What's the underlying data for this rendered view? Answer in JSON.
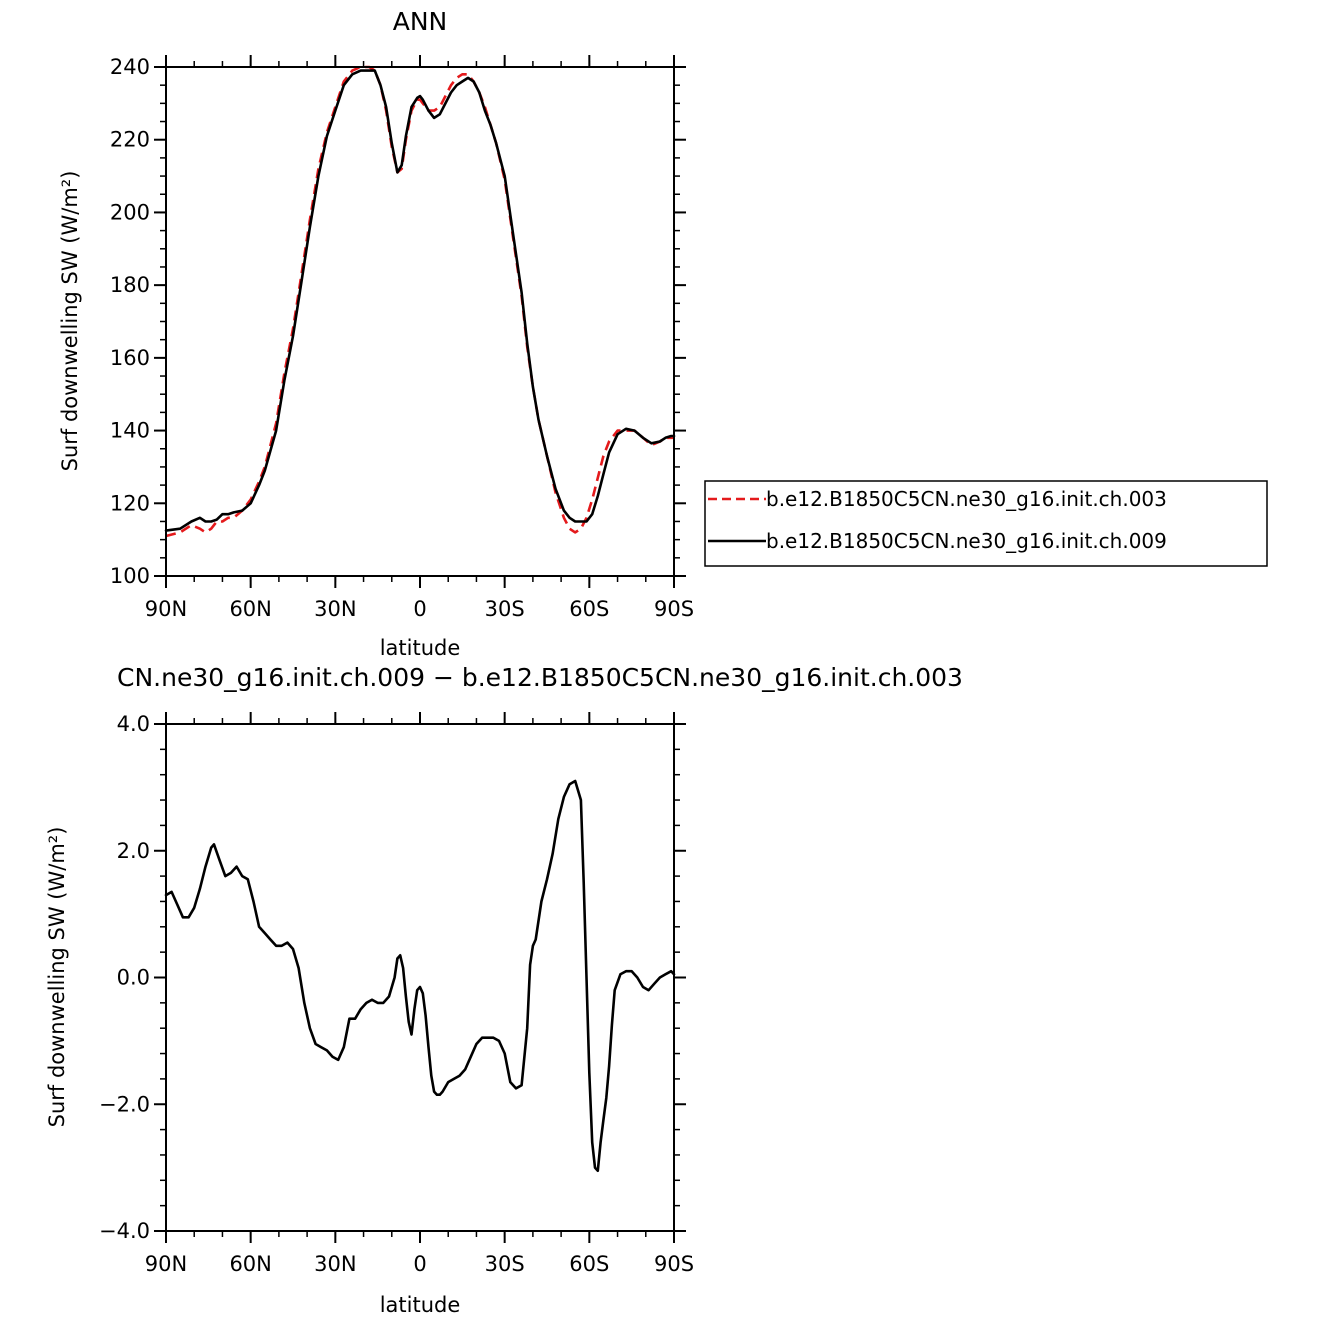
{
  "chart_data": [
    {
      "type": "line",
      "title": "ANN",
      "xlabel": "latitude",
      "ylabel": "Surf downwelling SW (W/m²)",
      "ylim": [
        100,
        240
      ],
      "y_ticks": [
        100,
        120,
        140,
        160,
        180,
        200,
        220,
        240
      ],
      "y_tick_labels": [
        "100",
        "120",
        "140",
        "160",
        "180",
        "200",
        "220",
        "240"
      ],
      "xlim": [
        90,
        -90
      ],
      "x_ticks": [
        90,
        60,
        30,
        0,
        -30,
        -60,
        -90
      ],
      "x_tick_labels": [
        "90N",
        "60N",
        "30N",
        "0",
        "30S",
        "60S",
        "90S"
      ],
      "legend_position": "right",
      "grid": false,
      "series": [
        {
          "name": "b.e12.B1850C5CN.ne30_g16.init.ch.003",
          "color": "#e41a1c",
          "dash": "dashed",
          "x": [
            90,
            85,
            81,
            78,
            76,
            74,
            72,
            70,
            68,
            66,
            63,
            60,
            57,
            55,
            51,
            48,
            45,
            42,
            39,
            36,
            33,
            30,
            27,
            24,
            21,
            18,
            16,
            14,
            12,
            10,
            8,
            6.5,
            5,
            3,
            1,
            0,
            -1,
            -3,
            -5,
            -7,
            -9,
            -11,
            -13,
            -15,
            -17,
            -19,
            -21,
            -23,
            -25,
            -27,
            -30,
            -33,
            -36,
            -38,
            -40,
            -42,
            -45,
            -48,
            -51,
            -53,
            -55,
            -57,
            -59,
            -61,
            -63,
            -65,
            -67,
            -70,
            -73,
            -76,
            -79,
            -82,
            -85,
            -87,
            -89,
            -90
          ],
          "y": [
            111,
            112,
            114,
            113,
            112,
            113,
            115,
            115,
            116,
            116,
            118,
            121,
            126,
            130,
            142,
            156,
            168,
            183,
            198,
            212,
            222,
            229,
            236,
            239,
            240,
            240,
            239,
            235,
            228,
            218,
            211,
            212,
            220,
            228,
            231,
            231,
            230,
            228,
            228,
            229,
            232,
            235,
            237,
            238,
            238,
            236,
            233,
            229,
            224,
            219,
            209,
            193,
            177,
            163,
            152,
            143,
            133,
            123,
            116,
            113,
            112,
            113,
            116,
            121,
            127,
            133,
            137,
            140,
            140,
            140,
            138,
            136,
            137,
            138,
            138,
            138
          ]
        },
        {
          "name": "b.e12.B1850C5CN.ne30_g16.init.ch.009",
          "color": "#000000",
          "dash": "solid",
          "x": [
            90,
            85,
            81,
            78,
            76,
            74,
            72,
            70,
            68,
            66,
            63,
            60,
            57,
            55,
            51,
            48,
            45,
            42,
            39,
            36,
            33,
            30,
            27,
            24,
            21,
            18,
            16,
            14,
            12,
            10,
            8,
            6.5,
            5,
            3,
            1,
            0,
            -1,
            -3,
            -5,
            -7,
            -9,
            -11,
            -13,
            -15,
            -17,
            -19,
            -21,
            -23,
            -25,
            -27,
            -30,
            -33,
            -36,
            -38,
            -40,
            -42,
            -45,
            -48,
            -51,
            -53,
            -55,
            -57,
            -59,
            -61,
            -63,
            -65,
            -67,
            -70,
            -73,
            -76,
            -79,
            -82,
            -85,
            -87,
            -89,
            -90
          ],
          "y": [
            112.5,
            113,
            115,
            116,
            115,
            115,
            115.5,
            117,
            117,
            117.5,
            118,
            120,
            125,
            129,
            140,
            154,
            166,
            181,
            196,
            210,
            221,
            228,
            235,
            238,
            239,
            239,
            239,
            235,
            229,
            219,
            211,
            213,
            221,
            229,
            231.5,
            232,
            231,
            228,
            226,
            227,
            230,
            233,
            235,
            236,
            237,
            236,
            233,
            228,
            224,
            219,
            210,
            194,
            178,
            164,
            152,
            143,
            133,
            124,
            118,
            116,
            115,
            115,
            115,
            117,
            122,
            128,
            134,
            139,
            140.5,
            140,
            138,
            136.5,
            137,
            138,
            138.5,
            138.5
          ]
        }
      ]
    },
    {
      "type": "line",
      "title": "CN.ne30_g16.init.ch.009 − b.e12.B1850C5CN.ne30_g16.init.ch.003",
      "xlabel": "latitude",
      "ylabel": "Surf downwelling SW (W/m²)",
      "ylim": [
        -4,
        4
      ],
      "y_ticks": [
        -4,
        -2,
        0,
        2,
        4
      ],
      "y_tick_labels": [
        "−4.0",
        "−2.0",
        "0.0",
        "2.0",
        "4.0"
      ],
      "xlim": [
        90,
        -90
      ],
      "x_ticks": [
        90,
        60,
        30,
        0,
        -30,
        -60,
        -90
      ],
      "x_tick_labels": [
        "90N",
        "60N",
        "30N",
        "0",
        "30S",
        "60S",
        "90S"
      ],
      "grid": false,
      "series": [
        {
          "color": "#000000",
          "dash": "solid",
          "x": [
            90,
            88,
            86,
            84,
            82,
            80,
            78,
            76,
            74,
            73,
            71,
            69,
            67,
            65,
            63,
            61,
            59,
            57,
            55,
            53,
            51,
            49,
            47,
            45,
            43,
            41,
            39,
            37,
            35,
            33,
            31,
            29,
            27,
            25,
            23,
            21,
            19,
            17,
            15,
            13,
            11,
            9,
            8,
            7,
            6,
            5,
            4,
            3,
            2,
            1,
            0,
            -1,
            -2,
            -3,
            -4,
            -5,
            -6,
            -7,
            -8,
            -10,
            -12,
            -14,
            -16,
            -18,
            -20,
            -22,
            -24,
            -26,
            -28,
            -30,
            -32,
            -34,
            -36,
            -38,
            -39,
            -40,
            -41,
            -43,
            -45,
            -47,
            -49,
            -51,
            -53,
            -55,
            -57,
            -58,
            -59,
            -60,
            -61,
            -62,
            -63,
            -64,
            -65,
            -66,
            -67,
            -68,
            -69,
            -71,
            -73,
            -75,
            -77,
            -79,
            -81,
            -83,
            -85,
            -87,
            -89,
            -90
          ],
          "y": [
            1.3,
            1.35,
            1.15,
            0.95,
            0.95,
            1.1,
            1.4,
            1.75,
            2.05,
            2.1,
            1.85,
            1.6,
            1.65,
            1.75,
            1.6,
            1.55,
            1.2,
            0.8,
            0.7,
            0.6,
            0.5,
            0.5,
            0.55,
            0.45,
            0.15,
            -0.4,
            -0.8,
            -1.05,
            -1.1,
            -1.15,
            -1.25,
            -1.3,
            -1.1,
            -0.65,
            -0.65,
            -0.5,
            -0.4,
            -0.35,
            -0.4,
            -0.4,
            -0.3,
            0.0,
            0.3,
            0.35,
            0.15,
            -0.3,
            -0.7,
            -0.9,
            -0.5,
            -0.2,
            -0.15,
            -0.25,
            -0.6,
            -1.1,
            -1.55,
            -1.8,
            -1.85,
            -1.85,
            -1.8,
            -1.65,
            -1.6,
            -1.55,
            -1.45,
            -1.25,
            -1.05,
            -0.95,
            -0.95,
            -0.95,
            -1.0,
            -1.2,
            -1.65,
            -1.75,
            -1.7,
            -0.8,
            0.2,
            0.5,
            0.6,
            1.2,
            1.55,
            1.95,
            2.5,
            2.85,
            3.05,
            3.1,
            2.8,
            1.5,
            0.0,
            -1.5,
            -2.6,
            -3.0,
            -3.05,
            -2.6,
            -2.25,
            -1.9,
            -1.4,
            -0.75,
            -0.2,
            0.05,
            0.1,
            0.1,
            0.0,
            -0.15,
            -0.2,
            -0.1,
            0.0,
            0.05,
            0.1,
            0.05
          ]
        }
      ]
    }
  ]
}
